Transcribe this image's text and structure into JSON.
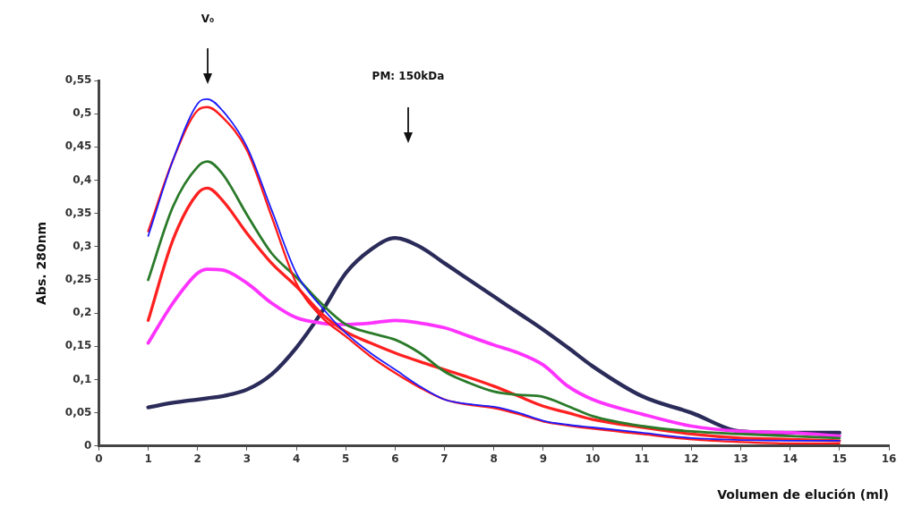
{
  "chart_data": {
    "type": "line",
    "xlabel": "Volumen de elución (ml)",
    "ylabel": "Abs. 280nm",
    "annotations": [
      "V₀",
      "PM: 150kDa"
    ],
    "x": [
      1,
      1.5,
      2,
      2.2,
      2.5,
      3,
      3.5,
      4,
      4.5,
      5,
      5.5,
      6,
      6.5,
      7,
      7.5,
      8,
      8.5,
      9,
      9.5,
      10,
      11,
      12,
      13,
      14,
      15
    ],
    "series": [
      {
        "color": "#1a1aff",
        "values": [
          0.316,
          0.43,
          0.515,
          0.522,
          0.505,
          0.45,
          0.355,
          0.26,
          0.21,
          0.17,
          0.14,
          0.115,
          0.09,
          0.07,
          0.063,
          0.059,
          0.05,
          0.038,
          0.032,
          0.028,
          0.02,
          0.012,
          0.009,
          0.008,
          0.008
        ]
      },
      {
        "color": "#ff1a1a",
        "values": [
          0.323,
          0.43,
          0.505,
          0.51,
          0.495,
          0.445,
          0.345,
          0.245,
          0.195,
          0.165,
          0.135,
          0.11,
          0.088,
          0.07,
          0.062,
          0.057,
          0.048,
          0.037,
          0.031,
          0.026,
          0.018,
          0.01,
          0.006,
          0.004,
          0.004
        ]
      },
      {
        "color": "#2a7a2a",
        "values": [
          0.25,
          0.36,
          0.42,
          0.428,
          0.41,
          0.348,
          0.29,
          0.254,
          0.215,
          0.183,
          0.17,
          0.16,
          0.14,
          0.112,
          0.095,
          0.082,
          0.077,
          0.074,
          0.06,
          0.045,
          0.03,
          0.022,
          0.018,
          0.015,
          0.012
        ]
      },
      {
        "color": "#ff2020",
        "values": [
          0.189,
          0.31,
          0.38,
          0.388,
          0.37,
          0.32,
          0.275,
          0.24,
          0.2,
          0.172,
          0.155,
          0.14,
          0.127,
          0.115,
          0.103,
          0.09,
          0.075,
          0.06,
          0.05,
          0.04,
          0.028,
          0.018,
          0.012,
          0.01,
          0.008
        ]
      },
      {
        "color": "#ff33ff",
        "values": [
          0.155,
          0.215,
          0.26,
          0.266,
          0.265,
          0.245,
          0.215,
          0.193,
          0.185,
          0.183,
          0.185,
          0.189,
          0.185,
          0.178,
          0.165,
          0.152,
          0.14,
          0.122,
          0.09,
          0.07,
          0.048,
          0.03,
          0.022,
          0.02,
          0.015
        ]
      },
      {
        "color": "#2b2b5a",
        "values": [
          0.058,
          0.065,
          0.07,
          0.072,
          0.075,
          0.085,
          0.108,
          0.148,
          0.2,
          0.26,
          0.295,
          0.313,
          0.3,
          0.275,
          0.25,
          0.225,
          0.2,
          0.175,
          0.148,
          0.12,
          0.075,
          0.05,
          0.022,
          0.02,
          0.02
        ]
      }
    ],
    "xlim": [
      0,
      16
    ],
    "xticks": [
      0,
      1,
      2,
      3,
      4,
      5,
      6,
      7,
      8,
      9,
      10,
      11,
      12,
      13,
      14,
      15,
      16
    ],
    "ylim": [
      0,
      0.55
    ],
    "yticks": [
      0,
      {
        "value": 0.05,
        "label": "0,05"
      },
      {
        "value": 0.1,
        "label": "0,1"
      },
      {
        "value": 0.15,
        "label": "0,15"
      },
      {
        "value": 0.2,
        "label": "0,2"
      },
      {
        "value": 0.25,
        "label": "0,25"
      },
      {
        "value": 0.3,
        "label": "0,3"
      },
      {
        "value": 0.35,
        "label": "0,35"
      },
      {
        "value": 0.4,
        "label": "0,4"
      },
      {
        "value": 0.45,
        "label": "0,45"
      },
      {
        "value": 0.5,
        "label": "0,5"
      },
      {
        "value": 0.55,
        "label": "0,55"
      }
    ],
    "grid": false,
    "legend": false,
    "marker": "none",
    "line_style": "solid"
  }
}
